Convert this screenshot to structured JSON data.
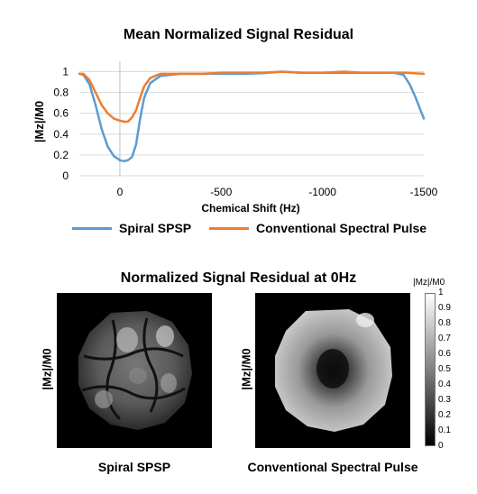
{
  "chart_data": {
    "type": "line",
    "title": "Mean Normalized Signal Residual",
    "xlabel": "Chemical Shift (Hz)",
    "ylabel": "|Mz|/M0",
    "xlim": [
      200,
      -1500
    ],
    "ylim": [
      0,
      1.1
    ],
    "x_ticks": [
      0,
      -500,
      -1000,
      -1500
    ],
    "x_tick_labels": [
      "0",
      "-500",
      "-1000",
      "-1500"
    ],
    "y_ticks": [
      0,
      0.2,
      0.4,
      0.6,
      0.8,
      1
    ],
    "y_tick_labels": [
      "0",
      "0.2",
      "0.4",
      "0.6",
      "0.8",
      "1"
    ],
    "grid": "horizontal",
    "legend": "bottom",
    "series": [
      {
        "name": "Spiral SPSP",
        "color": "#5b9bd5",
        "x": [
          200,
          180,
          150,
          120,
          90,
          60,
          30,
          0,
          -20,
          -40,
          -60,
          -80,
          -100,
          -120,
          -150,
          -200,
          -250,
          -300,
          -400,
          -500,
          -600,
          -700,
          -800,
          -900,
          -1000,
          -1100,
          -1200,
          -1300,
          -1350,
          -1400,
          -1430,
          -1460,
          -1500
        ],
        "y": [
          0.98,
          0.97,
          0.88,
          0.68,
          0.45,
          0.28,
          0.19,
          0.15,
          0.14,
          0.15,
          0.18,
          0.3,
          0.55,
          0.75,
          0.89,
          0.96,
          0.97,
          0.98,
          0.98,
          0.98,
          0.98,
          0.985,
          1.0,
          0.99,
          0.99,
          0.99,
          0.99,
          0.99,
          0.99,
          0.97,
          0.88,
          0.75,
          0.55
        ]
      },
      {
        "name": "Conventional Spectral Pulse",
        "color": "#ed7d31",
        "x": [
          200,
          180,
          150,
          120,
          90,
          60,
          30,
          0,
          -20,
          -40,
          -60,
          -80,
          -100,
          -120,
          -150,
          -200,
          -250,
          -300,
          -400,
          -500,
          -600,
          -700,
          -800,
          -900,
          -1000,
          -1100,
          -1200,
          -1300,
          -1400,
          -1450,
          -1500
        ],
        "y": [
          0.98,
          0.98,
          0.92,
          0.8,
          0.68,
          0.6,
          0.55,
          0.53,
          0.52,
          0.52,
          0.56,
          0.63,
          0.75,
          0.86,
          0.94,
          0.98,
          0.98,
          0.98,
          0.98,
          0.99,
          0.99,
          0.99,
          1.0,
          0.99,
          0.99,
          1.0,
          0.99,
          0.99,
          0.99,
          0.985,
          0.98
        ]
      }
    ]
  },
  "maps": {
    "title": "Normalized Signal Residual at 0Hz",
    "ylabel": "|Mz|/M0",
    "left_caption": "Spiral SPSP",
    "right_caption": "Conventional Spectral Pulse",
    "colorbar_title": "|Mz|/M0",
    "colorbar_ticks": [
      "1",
      "0.9",
      "0.8",
      "0.7",
      "0.6",
      "0.5",
      "0.4",
      "0.3",
      "0.2",
      "0.1",
      "0"
    ],
    "colorbar_values": [
      1,
      0.9,
      0.8,
      0.7,
      0.6,
      0.5,
      0.4,
      0.3,
      0.2,
      0.1,
      0
    ]
  }
}
